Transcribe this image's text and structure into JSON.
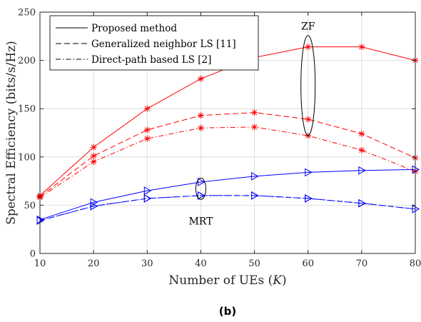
{
  "chart_data": {
    "type": "line",
    "caption": "(b)",
    "xlabel_text": "Number of UEs (",
    "xlabel_var": "K",
    "xlabel_close": ")",
    "ylabel": "Spectral Efficiency (bits/s/Hz)",
    "x": [
      10,
      20,
      30,
      40,
      50,
      60,
      70,
      80
    ],
    "xlim": [
      10,
      80
    ],
    "ylim": [
      0,
      250
    ],
    "xticks": [
      "10",
      "20",
      "30",
      "40",
      "50",
      "60",
      "70",
      "80"
    ],
    "yticks": [
      "0",
      "50",
      "100",
      "150",
      "200",
      "250"
    ],
    "grid": true,
    "legend_position": "top-left",
    "legend": [
      {
        "label": "Proposed method",
        "dash": "solid"
      },
      {
        "label": "Generalized neighbor LS [11]",
        "dash": "dashed"
      },
      {
        "label": "Direct-path based LS [2]",
        "dash": "dashdot"
      }
    ],
    "series": [
      {
        "group": "ZF",
        "style": "solid",
        "color": "#ff0000",
        "marker": "asterisk",
        "values": [
          60,
          110,
          150,
          181,
          203,
          214,
          214,
          200
        ]
      },
      {
        "group": "ZF",
        "style": "dashed",
        "color": "#ff0000",
        "marker": "asterisk",
        "values": [
          59,
          101,
          128,
          143,
          146,
          139,
          124,
          99
        ]
      },
      {
        "group": "ZF",
        "style": "dashdot",
        "color": "#ff0000",
        "marker": "asterisk",
        "values": [
          58,
          95,
          119,
          130,
          131,
          122,
          107,
          85
        ]
      },
      {
        "group": "MRT",
        "style": "solid",
        "color": "#0000ff",
        "marker": "triangle-right",
        "values": [
          35,
          53,
          65,
          74,
          80,
          84,
          86,
          87
        ]
      },
      {
        "group": "MRT",
        "style": "dashed",
        "color": "#0000ff",
        "marker": "triangle-right",
        "values": [
          34,
          49,
          57,
          60,
          60,
          57,
          52,
          46
        ]
      },
      {
        "group": "MRT",
        "style": "dashdot",
        "color": "#0000ff",
        "marker": "triangle-right",
        "values": [
          34,
          49,
          57,
          60,
          60,
          57,
          52,
          46
        ]
      }
    ],
    "annotations": [
      {
        "text": "ZF",
        "x": 60,
        "y": 175
      },
      {
        "text": "MRT",
        "x": 40,
        "y": 60
      }
    ]
  }
}
